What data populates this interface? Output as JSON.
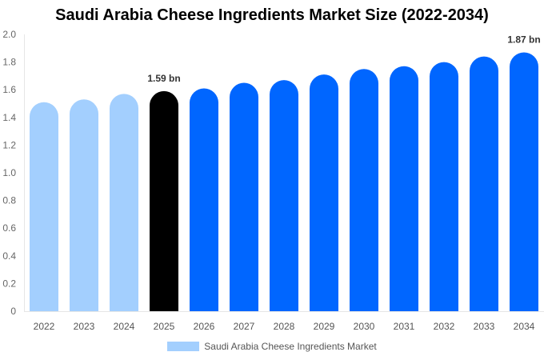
{
  "chart_data": {
    "type": "bar",
    "title": "Saudi Arabia Cheese Ingredients Market Size (2022-2034)",
    "categories": [
      "2022",
      "2023",
      "2024",
      "2025",
      "2026",
      "2027",
      "2028",
      "2029",
      "2030",
      "2031",
      "2032",
      "2033",
      "2034"
    ],
    "series": [
      {
        "name": "Saudi Arabia Cheese Ingredients Market",
        "values": [
          1.51,
          1.53,
          1.57,
          1.59,
          1.61,
          1.65,
          1.67,
          1.71,
          1.75,
          1.77,
          1.8,
          1.84,
          1.87
        ]
      }
    ],
    "data_labels": {
      "2025": "1.59 bn",
      "2034": "1.87 bn"
    },
    "ylim": [
      0,
      2.0
    ],
    "yticks": [
      "0",
      "0.2",
      "0.4",
      "0.6",
      "0.8",
      "1.0",
      "1.2",
      "1.4",
      "1.6",
      "1.8",
      "2.0"
    ],
    "grid": false,
    "legend_position": "bottom",
    "colors": {
      "historical": "#a3cffe",
      "current": "#000000",
      "forecast": "#0066ff"
    }
  }
}
